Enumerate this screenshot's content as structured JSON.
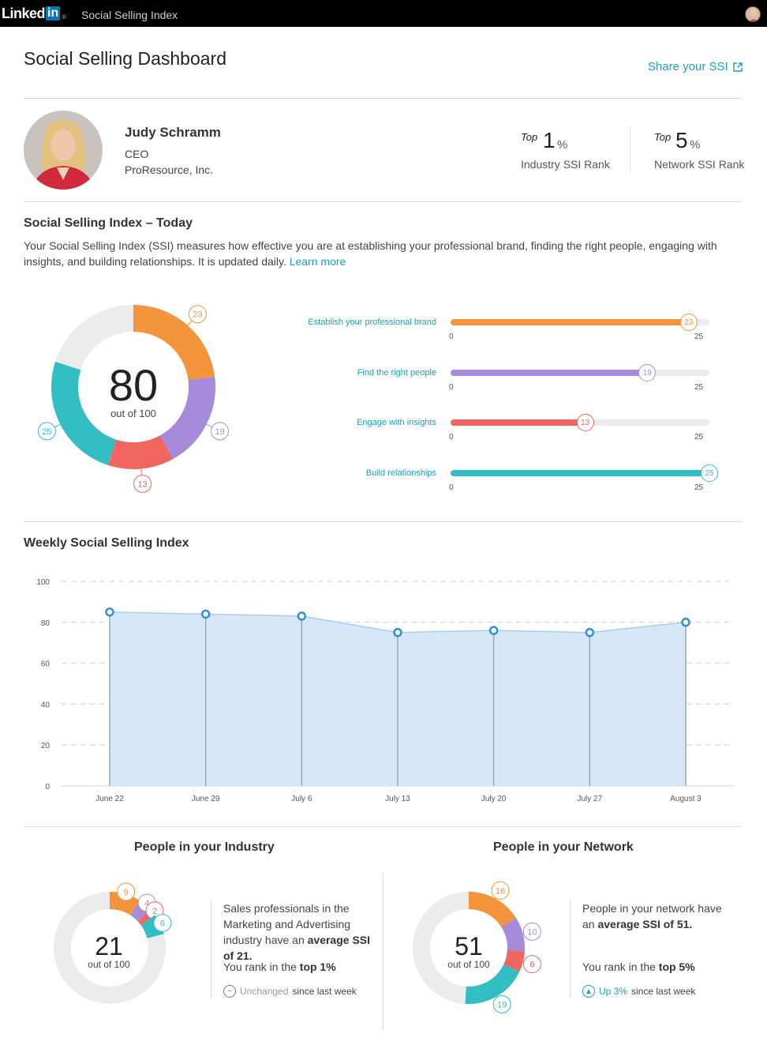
{
  "header": {
    "logo_text": "Linked",
    "logo_in": "in",
    "logo_reg": "®",
    "app_title": "Social Selling Index"
  },
  "page": {
    "title": "Social Selling Dashboard",
    "share_label": "Share your SSI"
  },
  "profile": {
    "name": "Judy Schramm",
    "title": "CEO",
    "company": "ProResource, Inc."
  },
  "ranks": [
    {
      "top_label": "Top",
      "value": "1",
      "unit": "%",
      "label": "Industry SSI Rank"
    },
    {
      "top_label": "Top",
      "value": "5",
      "unit": "%",
      "label": "Network SSI Rank"
    }
  ],
  "ssi_today": {
    "title": "Social Selling Index – Today",
    "description": "Your Social Selling Index (SSI) measures how effective you are at establishing your professional brand, finding the right people, engaging with insights, and building relationships. It is updated daily.",
    "learn_more": "Learn more",
    "score": "80",
    "score_sub": "out of 100"
  },
  "components": [
    {
      "label": "Establish your professional brand",
      "value": 23,
      "max": 25,
      "color": "#f4943c",
      "min_label": "0",
      "max_label": "25"
    },
    {
      "label": "Find the right people",
      "value": 19,
      "max": 25,
      "color": "#a78bdb",
      "min_label": "0",
      "max_label": "25"
    },
    {
      "label": "Engage with insights",
      "value": 13,
      "max": 25,
      "color": "#f0655f",
      "min_label": "0",
      "max_label": "25"
    },
    {
      "label": "Build relationships",
      "value": 25,
      "max": 25,
      "color": "#33bec3",
      "min_label": "0",
      "max_label": "25"
    }
  ],
  "weekly": {
    "title": "Weekly Social Selling Index"
  },
  "chart_data": {
    "type": "area",
    "x": [
      "June 22",
      "June 29",
      "July 6",
      "July 13",
      "July 20",
      "July 27",
      "August 3"
    ],
    "series": [
      {
        "values": [
          85,
          84,
          83,
          75,
          76,
          75,
          80
        ]
      }
    ],
    "ylim": [
      0,
      100
    ],
    "yticks": [
      0,
      20,
      40,
      60,
      80,
      100
    ],
    "grid": true,
    "colors": {
      "fill": "#d6e8f7",
      "line": "#a9cdee",
      "point": "#2e8fd9"
    }
  },
  "industry": {
    "title": "People in your Industry",
    "score": "21",
    "score_sub": "out of 100",
    "segments": [
      9,
      4,
      2,
      6
    ],
    "text1": "Sales professionals in the Marketing and Advertising industry have an",
    "text_bold": "average SSI of 21.",
    "rank_text": "You rank in the",
    "rank_bold": "top 1%",
    "change_highlight": "Unchanged",
    "change_rest": "since last week"
  },
  "network": {
    "title": "People in your Network",
    "score": "51",
    "score_sub": "out of 100",
    "segments": [
      16,
      10,
      6,
      19
    ],
    "text1": "People in your network have an",
    "text_bold": "average SSI of 51.",
    "rank_text": "You rank in the",
    "rank_bold": "top 5%",
    "change_highlight": "Up 3%",
    "change_rest": "since last week"
  }
}
